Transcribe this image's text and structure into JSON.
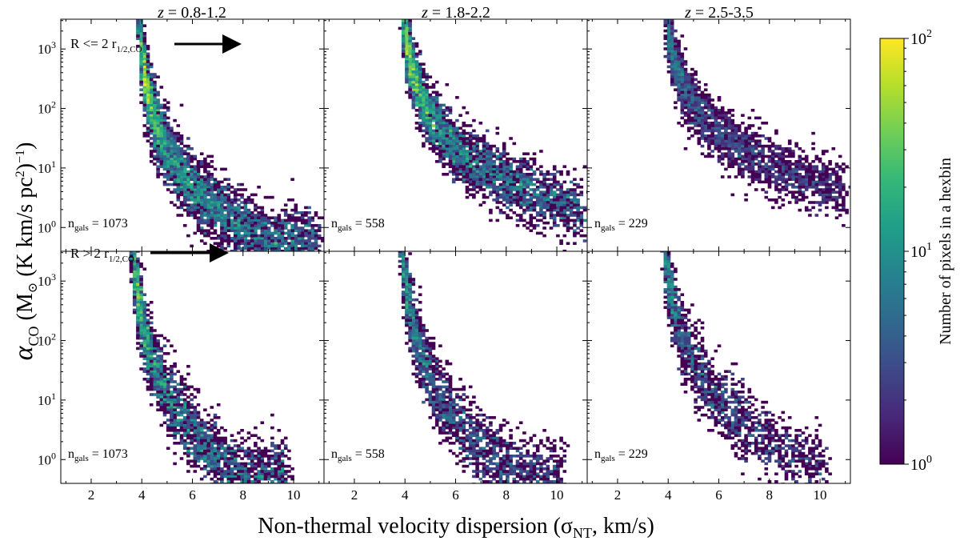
{
  "chart_data": {
    "type": "hexbin-grid",
    "panel_titles": [
      {
        "prefix": "z",
        "range": " = 0.8-1.2"
      },
      {
        "prefix": "z",
        "range": " = 1.8-2.2"
      },
      {
        "prefix": "z",
        "range": " = 2.5-3.5"
      }
    ],
    "row_labels": [
      {
        "text": "R <= 2 r",
        "sub": "1/2,CO"
      },
      {
        "text": "R > 2 r",
        "sub": "1/2,CO"
      }
    ],
    "ngals_label": {
      "base": "n",
      "sub": "gals",
      "eq": " = "
    },
    "ngals": [
      1073,
      558,
      229
    ],
    "xlim": [
      0.8,
      11.2
    ],
    "x_ticks": [
      2,
      4,
      6,
      8,
      10
    ],
    "ylim_log10": [
      -0.4,
      3.5
    ],
    "y_ticks": [
      {
        "base": "10",
        "exp": "0"
      },
      {
        "base": "10",
        "exp": "1"
      },
      {
        "base": "10",
        "exp": "2"
      },
      {
        "base": "10",
        "exp": "3"
      }
    ],
    "xlabel": {
      "pre": "Non-thermal velocity dispersion (",
      "sym": "σ",
      "sub": "NT",
      "post": ", km/s)"
    },
    "ylabel": {
      "sym": "α",
      "sub": "CO",
      "unit": " (M",
      "sun": "⊙",
      "unit2": " (K km/s pc",
      "sq": "2",
      "close": ")",
      "exp": "−1",
      "end": ")"
    },
    "colorbar": {
      "label": "Number of pixels in a hexbin",
      "ticks": [
        {
          "base": "10",
          "exp": "0"
        },
        {
          "base": "10",
          "exp": "1"
        },
        {
          "base": "10",
          "exp": "2"
        }
      ],
      "range_log10": [
        0,
        2
      ],
      "colormap": [
        "#440154",
        "#482878",
        "#3e4989",
        "#31688e",
        "#26828e",
        "#1f9e89",
        "#35b779",
        "#6ece58",
        "#b5de2b",
        "#fde725"
      ]
    },
    "panels": [
      {
        "row": 0,
        "col": 0,
        "x0": 4.0,
        "ypk": 2.9,
        "k": 1.03,
        "spread": 0.28,
        "xmax": 11.0,
        "n": 4200,
        "peak": 2.0,
        "x_dense_log10": 0.75
      },
      {
        "row": 0,
        "col": 1,
        "x0": 4.0,
        "ypk": 3.3,
        "k": 0.9,
        "spread": 0.26,
        "xmax": 11.0,
        "n": 3400,
        "peak": 1.85,
        "x_dense_log10": 0.8
      },
      {
        "row": 0,
        "col": 2,
        "x0": 4.0,
        "ypk": 3.3,
        "k": 0.8,
        "spread": 0.24,
        "xmax": 11.0,
        "n": 2300,
        "peak": 1.05,
        "x_dense_log10": 1.0
      },
      {
        "row": 1,
        "col": 0,
        "x0": 3.7,
        "ypk": 3.3,
        "k": 1.25,
        "spread": 0.3,
        "xmax": 9.8,
        "n": 2600,
        "peak": 1.7,
        "x_dense_log10": 1.3
      },
      {
        "row": 1,
        "col": 1,
        "x0": 3.9,
        "ypk": 3.4,
        "k": 1.25,
        "spread": 0.3,
        "xmax": 10.2,
        "n": 2200,
        "peak": 1.35,
        "x_dense_log10": 1.5
      },
      {
        "row": 1,
        "col": 2,
        "x0": 3.9,
        "ypk": 3.4,
        "k": 1.1,
        "spread": 0.3,
        "xmax": 10.2,
        "n": 1700,
        "peak": 1.25,
        "x_dense_log10": 1.6
      }
    ]
  }
}
